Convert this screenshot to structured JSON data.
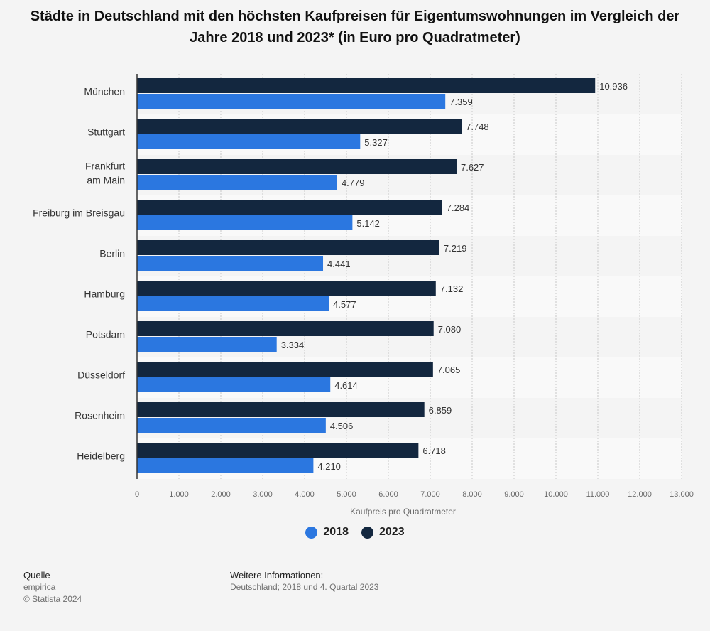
{
  "chart_data": {
    "type": "bar",
    "orientation": "horizontal",
    "title": "Städte in Deutschland mit den höchsten Kaufpreisen für Eigentumswohnungen im Vergleich der Jahre 2018 und 2023* (in Euro pro Quadratmeter)",
    "categories": [
      [
        "München"
      ],
      [
        "Stuttgart"
      ],
      [
        "Frankfurt",
        "am Main"
      ],
      [
        "Freiburg im Breisgau"
      ],
      [
        "Berlin"
      ],
      [
        "Hamburg"
      ],
      [
        "Potsdam"
      ],
      [
        "Düsseldorf"
      ],
      [
        "Rosenheim"
      ],
      [
        "Heidelberg"
      ]
    ],
    "series": [
      {
        "name": "2023",
        "color": "#13273f",
        "values": [
          10936,
          7748,
          7627,
          7284,
          7219,
          7132,
          7080,
          7065,
          6859,
          6718
        ],
        "labels": [
          "10.936",
          "7.748",
          "7.627",
          "7.284",
          "7.219",
          "7.132",
          "7.080",
          "7.065",
          "6.859",
          "6.718"
        ]
      },
      {
        "name": "2018",
        "color": "#2b77e0",
        "values": [
          7359,
          5327,
          4779,
          5142,
          4441,
          4577,
          3334,
          4614,
          4506,
          4210
        ],
        "labels": [
          "7.359",
          "5.327",
          "4.779",
          "5.142",
          "4.441",
          "4.577",
          "3.334",
          "4.614",
          "4.506",
          "4.210"
        ]
      }
    ],
    "xlabel": "Kaufpreis pro Quadratmeter",
    "xlim": [
      0,
      13000
    ],
    "xticks": [
      0,
      1000,
      2000,
      3000,
      4000,
      5000,
      6000,
      7000,
      8000,
      9000,
      10000,
      11000,
      12000,
      13000
    ],
    "xtick_labels": [
      "0",
      "1.000",
      "2.000",
      "3.000",
      "4.000",
      "5.000",
      "6.000",
      "7.000",
      "8.000",
      "9.000",
      "10.000",
      "11.000",
      "12.000",
      "13.000"
    ],
    "grid": true,
    "legend_position": "bottom-center"
  },
  "legend": [
    {
      "label": "2018",
      "color": "#2b77e0"
    },
    {
      "label": "2023",
      "color": "#13273f"
    }
  ],
  "footer": {
    "source_heading": "Quelle",
    "source_name": "empirica",
    "copyright": "© Statista 2024",
    "info_heading": "Weitere Informationen:",
    "info_text": "Deutschland; 2018 und 4. Quartal 2023"
  }
}
